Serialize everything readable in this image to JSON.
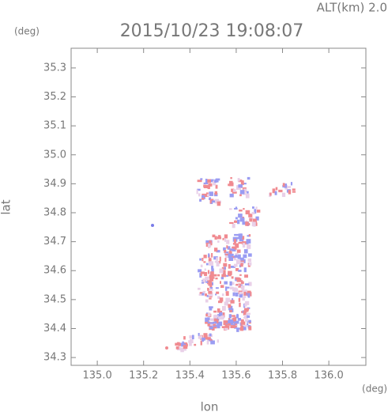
{
  "header": {
    "altitude": "ALT(km) 2.0",
    "time": "2015/10/23 19:08:07",
    "y_unit": "(deg)",
    "x_unit": "(deg)"
  },
  "chart_data": {
    "type": "map",
    "x_label": "lon",
    "y_label": "lat",
    "xlim": [
      134.887,
      136.16
    ],
    "ylim": [
      34.273,
      35.368
    ],
    "xticks": [
      {
        "value": 135.0,
        "label": "135.0"
      },
      135.2,
      135.4,
      135.6,
      135.8,
      {
        "value": 136.0,
        "label": "136.0"
      }
    ],
    "yticks": [
      34.3,
      34.4,
      34.5,
      34.6,
      34.7,
      34.8,
      34.9,
      {
        "value": 35.0,
        "label": "35.0"
      },
      35.1,
      35.2,
      35.3
    ]
  }
}
